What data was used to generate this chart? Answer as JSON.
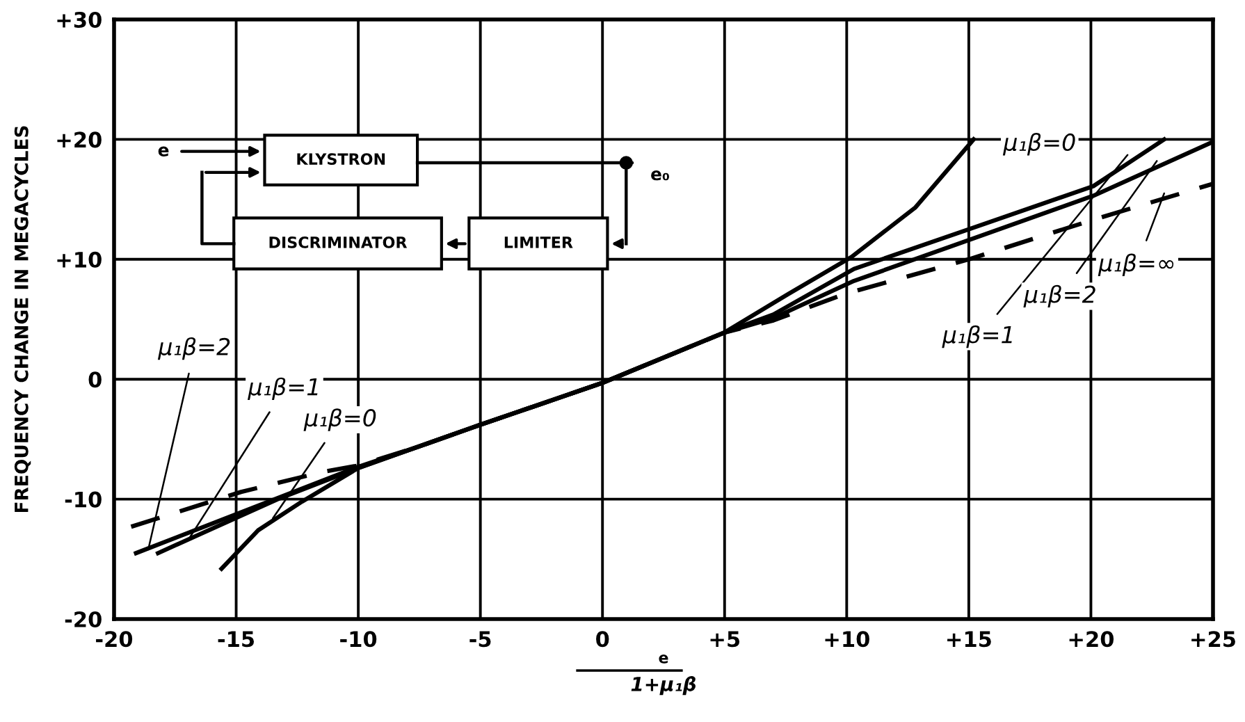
{
  "chart_data": {
    "type": "line",
    "ylabel": "FREQUENCY CHANGE IN MEGACYCLES",
    "xlabel": "e\n1+μ₁β",
    "xlim": [
      -20,
      25
    ],
    "ylim": [
      -20,
      30
    ],
    "xticks": [
      -20,
      -15,
      -10,
      -5,
      0,
      {
        "value": 5,
        "label": "+5"
      },
      {
        "value": 10,
        "label": "+10"
      },
      {
        "value": 15,
        "label": "+15"
      },
      {
        "value": 20,
        "label": "+20"
      },
      {
        "value": 25,
        "label": "+25"
      }
    ],
    "yticks": [
      -20,
      -10,
      0,
      {
        "value": 10,
        "label": "+10"
      },
      {
        "value": 20,
        "label": "+20"
      },
      {
        "value": 30,
        "label": "+30"
      }
    ],
    "grid": true,
    "legend": false,
    "marker": "none",
    "series": [
      {
        "color": "#000000",
        "line_style": "solid",
        "x": [
          -15.6,
          -14.1,
          -12.3,
          -10,
          -7.5,
          -5,
          0,
          5,
          7.6,
          10.2,
          12.8,
          15.2
        ],
        "values": [
          -15.8,
          -12.6,
          -10.2,
          -7.4,
          -5.6,
          -3.8,
          -0.3,
          3.9,
          7.1,
          10.2,
          14.3,
          20
        ]
      },
      {
        "color": "#000000",
        "line_style": "solid",
        "x": [
          -18.2,
          -13.3,
          -10,
          -7.5,
          -5,
          0,
          5,
          7,
          10.3,
          15,
          20.1,
          23
        ],
        "values": [
          -14.5,
          -10,
          -7.4,
          -5.6,
          -3.8,
          -0.3,
          3.9,
          5.4,
          9.2,
          12.5,
          16.1,
          20
        ]
      },
      {
        "color": "#000000",
        "line_style": "solid",
        "x": [
          -19.1,
          -12.9,
          -10,
          -7.5,
          -5,
          0,
          5,
          7,
          10.3,
          15,
          20.1,
          25
        ],
        "values": [
          -14.5,
          -9.6,
          -7.3,
          -5.6,
          -3.8,
          -0.3,
          3.9,
          5.1,
          8.2,
          11.6,
          15.3,
          19.8
        ]
      },
      {
        "color": "#000000",
        "line_style": "dashed",
        "x": [
          -19.3,
          -14.8,
          -11.4,
          -10,
          -7.5,
          -5,
          0,
          5,
          7,
          9.9,
          15,
          20.1,
          25
        ],
        "values": [
          -12.3,
          -9.4,
          -7.7,
          -7.2,
          -5.6,
          -3.8,
          -0.3,
          3.9,
          4.9,
          7.1,
          10,
          13.3,
          16.3
        ]
      }
    ],
    "annotations": [
      {
        "text": "μ₁β=2",
        "x": -18.6,
        "y": -14.2
      },
      {
        "text": "μ₁β=1",
        "x": -16.9,
        "y": -13.2
      },
      {
        "text": "μ₁β=0",
        "x": -13.5,
        "y": -11.6
      },
      {
        "text": "μ₁β=0",
        "x": 15.3,
        "y": 19.6
      },
      {
        "text": "μ₁β=1",
        "x": 21.5,
        "y": 18.7
      },
      {
        "text": "μ₁β=2",
        "x": 22.7,
        "y": 18.2
      },
      {
        "text": "μ₁β=∞",
        "x": 23,
        "y": 15.5
      },
      "KLYSTRON",
      "DISCRIMINATOR",
      "LIMITER",
      "e",
      "e₀"
    ]
  }
}
